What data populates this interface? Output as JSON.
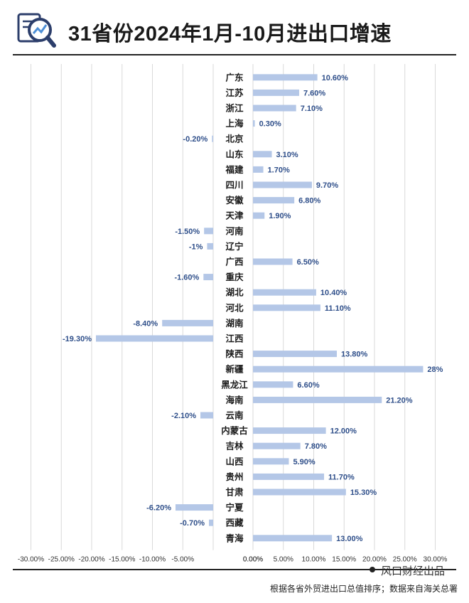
{
  "title": "31省份2024年1月-10月进出口增速",
  "brand": "风口财经出品",
  "source": "根据各省外贸进出口总值排序；数据来自海关总署",
  "logo": "magnifier-chart-icon",
  "colors": {
    "bar": "#b4c7e7",
    "value_label": "#2f4f8a",
    "text": "#1a1a1a",
    "grid": "#d9d9d9"
  },
  "chart_data": {
    "type": "bar",
    "orientation": "horizontal",
    "title": "",
    "xlabel": "",
    "ylabel": "",
    "xlim": [
      -30,
      30
    ],
    "grid": true,
    "categories": [
      "广东",
      "江苏",
      "浙江",
      "上海",
      "北京",
      "山东",
      "福建",
      "四川",
      "安徽",
      "天津",
      "河南",
      "辽宁",
      "广西",
      "重庆",
      "湖北",
      "河北",
      "湖南",
      "江西",
      "陕西",
      "新疆",
      "黑龙江",
      "海南",
      "云南",
      "内蒙古",
      "吉林",
      "山西",
      "贵州",
      "甘肃",
      "宁夏",
      "西藏",
      "青海"
    ],
    "values": [
      10.6,
      7.6,
      7.1,
      0.3,
      -0.2,
      3.1,
      1.7,
      9.7,
      6.8,
      1.9,
      -1.5,
      -1,
      6.5,
      -1.6,
      10.4,
      11.1,
      -8.4,
      -19.3,
      13.8,
      28,
      6.6,
      21.2,
      -2.1,
      12,
      7.8,
      5.9,
      11.7,
      15.3,
      -6.2,
      -0.7,
      13
    ],
    "value_labels": [
      "10.60%",
      "7.60%",
      "7.10%",
      "0.30%",
      "-0.20%",
      "3.10%",
      "1.70%",
      "9.70%",
      "6.80%",
      "1.90%",
      "-1.50%",
      "-1%",
      "6.50%",
      "-1.60%",
      "10.40%",
      "11.10%",
      "-8.40%",
      "-19.30%",
      "13.80%",
      "28%",
      "6.60%",
      "21.20%",
      "-2.10%",
      "12.00%",
      "7.80%",
      "5.90%",
      "11.70%",
      "15.30%",
      "-6.20%",
      "-0.70%",
      "13.00%"
    ],
    "left_ticks": [
      "-30.00%",
      "-25.00%",
      "-20.00%",
      "-15.00%",
      "-10.00%",
      "-5.00%",
      "0.00%"
    ],
    "right_ticks": [
      "0.00%",
      "5.00%",
      "10.00%",
      "15.00%",
      "20.00%",
      "25.00%",
      "30.00%"
    ]
  }
}
